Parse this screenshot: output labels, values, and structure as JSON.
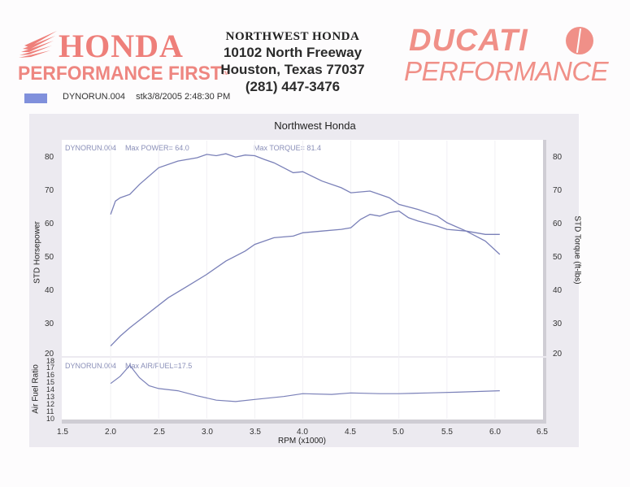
{
  "header": {
    "honda": {
      "brand": "HONDA",
      "tagline": "PERFORMANCE FIRST",
      "tm": "TM"
    },
    "dealer": {
      "name": "NORTHWEST HONDA",
      "street": "10102 North Freeway",
      "city": "Houston, Texas 77037",
      "phone": "(281) 447-3476"
    },
    "ducati": {
      "brand": "DUCATI",
      "tagline": "PERFORMANCE"
    }
  },
  "legend": {
    "run_name": "DYNORUN.004",
    "run_info": "stk3/8/2005 2:48:30 PM",
    "color": "#8090dc"
  },
  "colors": {
    "curve": "#7a80b8",
    "annotation": "#8a8fb8",
    "brand_red": "#ee7f7a",
    "frame": "#eceaf0"
  },
  "chart_data": [
    {
      "type": "line",
      "title": "Northwest Honda",
      "xlabel": "RPM (x1000)",
      "ylabel": "STD Horsepower",
      "ylabel_right": "STD Torque (ft-lbs)",
      "xlim": [
        1.5,
        6.5
      ],
      "ylim": [
        20,
        82
      ],
      "x_ticks": [
        "1.5",
        "2.0",
        "2.5",
        "3.0",
        "3.5",
        "4.0",
        "4.5",
        "5.0",
        "5.5",
        "6.0",
        "6.5"
      ],
      "y_ticks_left": [
        "80",
        "70",
        "60",
        "50",
        "40",
        "30",
        "20"
      ],
      "y_ticks_right": [
        "80",
        "70",
        "60",
        "50",
        "40",
        "30",
        "20"
      ],
      "annotations": {
        "run": "DYNORUN.004",
        "max_power": "Max POWER= 64.0",
        "max_torque": "Max TORQUE= 81.4"
      },
      "grid": true,
      "series": [
        {
          "name": "STD Torque (ft-lbs)",
          "x": [
            2.0,
            2.05,
            2.1,
            2.2,
            2.3,
            2.5,
            2.7,
            2.9,
            3.0,
            3.1,
            3.2,
            3.3,
            3.4,
            3.5,
            3.6,
            3.7,
            3.8,
            3.9,
            4.0,
            4.2,
            4.4,
            4.5,
            4.7,
            4.9,
            5.0,
            5.2,
            5.4,
            5.5,
            5.7,
            5.9,
            6.05
          ],
          "values": [
            63,
            67,
            68,
            69,
            72,
            77,
            79,
            80,
            81,
            80.6,
            81.2,
            80.2,
            80.8,
            80.6,
            79.5,
            78.5,
            77,
            75.5,
            75.8,
            73,
            71,
            69.5,
            70,
            68,
            66,
            64.5,
            62.5,
            60.5,
            58,
            55,
            51
          ]
        },
        {
          "name": "STD Horsepower",
          "x": [
            2.0,
            2.1,
            2.2,
            2.4,
            2.6,
            2.8,
            3.0,
            3.2,
            3.4,
            3.5,
            3.7,
            3.9,
            4.0,
            4.2,
            4.4,
            4.5,
            4.6,
            4.7,
            4.8,
            4.9,
            5.0,
            5.1,
            5.2,
            5.4,
            5.5,
            5.7,
            5.9,
            6.05
          ],
          "values": [
            23.5,
            26.5,
            29,
            33.5,
            38,
            41.5,
            45,
            49,
            52,
            54,
            56,
            56.5,
            57.5,
            58,
            58.5,
            59,
            61.5,
            63,
            62.5,
            63.5,
            64,
            62,
            61,
            59.5,
            58.5,
            58,
            57,
            57
          ]
        }
      ]
    },
    {
      "type": "line",
      "title": "",
      "xlabel": "RPM (x1000)",
      "ylabel": "Air Fuel Ratio",
      "xlim": [
        1.5,
        6.5
      ],
      "ylim": [
        10,
        18
      ],
      "y_ticks": [
        "18",
        "17",
        "16",
        "15",
        "14",
        "13",
        "12",
        "11",
        "10"
      ],
      "annotations": {
        "run": "DYNORUN.004",
        "max_afr": "Max AIR/FUEL=17.5"
      },
      "series": [
        {
          "name": "Air/Fuel",
          "x": [
            2.0,
            2.1,
            2.2,
            2.3,
            2.4,
            2.5,
            2.7,
            2.9,
            3.1,
            3.3,
            3.5,
            3.8,
            4.0,
            4.3,
            4.5,
            4.8,
            5.0,
            5.3,
            5.6,
            6.05
          ],
          "values": [
            15.0,
            16.0,
            17.5,
            15.8,
            14.7,
            14.3,
            14.0,
            13.3,
            12.7,
            12.5,
            12.8,
            13.2,
            13.6,
            13.5,
            13.7,
            13.6,
            13.6,
            13.7,
            13.8,
            14.0
          ]
        }
      ]
    }
  ]
}
